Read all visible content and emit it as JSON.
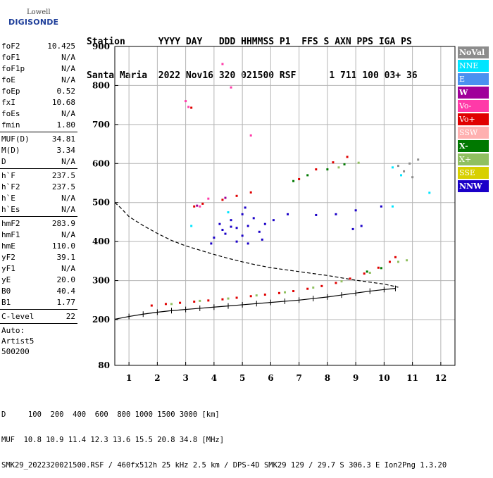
{
  "logo": {
    "line1": "Lowell",
    "line2": "DIGISONDE"
  },
  "header": {
    "line1": "Station      YYYY DAY   DDD HHMMSS P1  FFS S AXN PPS IGA PS",
    "line2": "Santa Maria  2022 Nov16 320 021500 RSF      1 711 100 03+ 36"
  },
  "params": [
    {
      "type": "row",
      "label": "foF2",
      "value": "10.425"
    },
    {
      "type": "row",
      "label": "foF1",
      "value": "N/A"
    },
    {
      "type": "row",
      "label": "foF1p",
      "value": "N/A"
    },
    {
      "type": "row",
      "label": "foE",
      "value": "N/A"
    },
    {
      "type": "row",
      "label": "foEp",
      "value": "0.52"
    },
    {
      "type": "row",
      "label": "fxI",
      "value": "10.68"
    },
    {
      "type": "row",
      "label": "foEs",
      "value": "N/A"
    },
    {
      "type": "row",
      "label": "fmin",
      "value": "1.80"
    },
    {
      "type": "sep"
    },
    {
      "type": "row",
      "label": "MUF(D)",
      "value": "34.81"
    },
    {
      "type": "row",
      "label": "M(D)",
      "value": "3.34"
    },
    {
      "type": "row",
      "label": "D",
      "value": "N/A"
    },
    {
      "type": "sep"
    },
    {
      "type": "row",
      "label": "h`F",
      "value": "237.5"
    },
    {
      "type": "row",
      "label": "h`F2",
      "value": "237.5"
    },
    {
      "type": "row",
      "label": "h`E",
      "value": "N/A"
    },
    {
      "type": "row",
      "label": "h`Es",
      "value": "N/A"
    },
    {
      "type": "sep"
    },
    {
      "type": "row",
      "label": "hmF2",
      "value": "283.9"
    },
    {
      "type": "row",
      "label": "hmF1",
      "value": "N/A"
    },
    {
      "type": "row",
      "label": "hmE",
      "value": "110.0"
    },
    {
      "type": "row",
      "label": "yF2",
      "value": "39.1"
    },
    {
      "type": "row",
      "label": "yF1",
      "value": "N/A"
    },
    {
      "type": "row",
      "label": "yE",
      "value": "20.0"
    },
    {
      "type": "row",
      "label": "B0",
      "value": "40.4"
    },
    {
      "type": "row",
      "label": "B1",
      "value": "1.77"
    },
    {
      "type": "sep"
    },
    {
      "type": "row",
      "label": "C-level",
      "value": "22"
    },
    {
      "type": "sep"
    },
    {
      "type": "text",
      "label": "Auto:"
    },
    {
      "type": "text",
      "label": "Artist5"
    },
    {
      "type": "text",
      "label": "500200"
    }
  ],
  "legend": [
    {
      "label": "NoVal",
      "bg": "#8c8c8c",
      "fg": "#ffffff",
      "bold": true
    },
    {
      "label": "NNE",
      "bg": "#00e5ff",
      "fg": "#ffffff",
      "bold": false
    },
    {
      "label": "E",
      "bg": "#4a90f0",
      "fg": "#ffffff",
      "bold": false
    },
    {
      "label": "W",
      "bg": "#a0009a",
      "fg": "#ffffff",
      "bold": true
    },
    {
      "label": "Vo-",
      "bg": "#ff3aa8",
      "fg": "#ffffff",
      "bold": false
    },
    {
      "label": "Vo+",
      "bg": "#e00000",
      "fg": "#ffffff",
      "bold": false
    },
    {
      "label": "SSW",
      "bg": "#ffb0b0",
      "fg": "#ffffff",
      "bold": false
    },
    {
      "label": "X-",
      "bg": "#007800",
      "fg": "#ffffff",
      "bold": true
    },
    {
      "label": "X+",
      "bg": "#90c060",
      "fg": "#ffffff",
      "bold": false
    },
    {
      "label": "SSE",
      "bg": "#d8d000",
      "fg": "#ffffff",
      "bold": false
    },
    {
      "label": "NNW",
      "bg": "#1a00c8",
      "fg": "#ffffff",
      "bold": true
    }
  ],
  "chart_data": {
    "type": "scatter",
    "xlim": [
      0.5,
      12.5
    ],
    "ylim": [
      80,
      900
    ],
    "xticks": [
      "1",
      "2",
      "3",
      "4",
      "5",
      "6",
      "7",
      "8",
      "9",
      "10",
      "11",
      "12"
    ],
    "yticks": [
      "80",
      "200",
      "300",
      "400",
      "500",
      "600",
      "700",
      "800",
      "900"
    ],
    "grid": true,
    "series": [
      {
        "color": "#e00000",
        "points": [
          [
            1.8,
            236
          ],
          [
            2.3,
            240
          ],
          [
            2.8,
            243
          ],
          [
            3.3,
            246
          ],
          [
            3.8,
            249
          ],
          [
            4.3,
            252
          ],
          [
            4.8,
            256
          ],
          [
            5.3,
            260
          ],
          [
            5.8,
            264
          ],
          [
            6.3,
            268
          ],
          [
            6.8,
            273
          ],
          [
            7.3,
            279
          ],
          [
            7.8,
            286
          ],
          [
            8.3,
            294
          ],
          [
            8.8,
            305
          ],
          [
            9.3,
            318
          ],
          [
            9.8,
            333
          ],
          [
            10.2,
            348
          ],
          [
            10.4,
            360
          ]
        ]
      },
      {
        "color": "#1a00c8",
        "points": [
          [
            4.0,
            410
          ],
          [
            4.4,
            420
          ],
          [
            4.8,
            435
          ],
          [
            5.2,
            440
          ],
          [
            5.6,
            425
          ],
          [
            4.2,
            445
          ],
          [
            4.6,
            455
          ],
          [
            5.0,
            470
          ],
          [
            5.4,
            460
          ],
          [
            4.8,
            400
          ],
          [
            5.2,
            395
          ],
          [
            5.0,
            415
          ],
          [
            4.6,
            438
          ],
          [
            5.8,
            445
          ],
          [
            6.1,
            455
          ],
          [
            6.6,
            470
          ],
          [
            7.6,
            468
          ],
          [
            8.3,
            470
          ],
          [
            9.0,
            480
          ],
          [
            9.2,
            440
          ],
          [
            8.9,
            432
          ],
          [
            9.9,
            490
          ],
          [
            3.9,
            395
          ],
          [
            4.3,
            430
          ],
          [
            5.7,
            405
          ],
          [
            5.1,
            487
          ]
        ]
      },
      {
        "color": "#e00000",
        "points": [
          [
            7.0,
            560
          ],
          [
            7.6,
            585
          ],
          [
            8.2,
            603
          ],
          [
            8.7,
            617
          ],
          [
            3.3,
            490
          ],
          [
            3.6,
            497
          ],
          [
            4.3,
            507
          ],
          [
            4.8,
            517
          ],
          [
            5.3,
            526
          ],
          [
            3.2,
            743
          ]
        ]
      },
      {
        "color": "#00e5ff",
        "points": [
          [
            10.3,
            590
          ],
          [
            10.6,
            570
          ],
          [
            11.6,
            525
          ],
          [
            10.3,
            490
          ],
          [
            4.5,
            475
          ],
          [
            3.2,
            440
          ]
        ]
      },
      {
        "color": "#90c060",
        "points": [
          [
            2.5,
            240
          ],
          [
            3.5,
            248
          ],
          [
            4.5,
            254
          ],
          [
            5.5,
            262
          ],
          [
            6.5,
            270
          ],
          [
            7.5,
            282
          ],
          [
            8.5,
            298
          ],
          [
            9.5,
            320
          ],
          [
            10.5,
            348
          ],
          [
            10.8,
            352
          ],
          [
            8.4,
            590
          ],
          [
            9.1,
            602
          ]
        ]
      },
      {
        "color": "#007800",
        "points": [
          [
            6.8,
            555
          ],
          [
            7.3,
            570
          ],
          [
            8.0,
            585
          ],
          [
            8.6,
            598
          ],
          [
            9.4,
            323
          ],
          [
            9.9,
            332
          ]
        ]
      },
      {
        "color": "#8c8c8c",
        "points": [
          [
            10.5,
            594
          ],
          [
            10.9,
            600
          ],
          [
            11.2,
            610
          ],
          [
            10.7,
            580
          ],
          [
            11.0,
            565
          ]
        ]
      },
      {
        "color": "#ff3aa8",
        "points": [
          [
            3.1,
            745
          ],
          [
            4.6,
            795
          ],
          [
            5.3,
            672
          ],
          [
            4.3,
            855
          ],
          [
            3.0,
            760
          ],
          [
            3.5,
            490
          ],
          [
            3.8,
            510
          ]
        ]
      },
      {
        "color": "#a0009a",
        "points": [
          [
            3.4,
            492
          ],
          [
            4.4,
            512
          ]
        ]
      }
    ],
    "curves": [
      {
        "style": "dashed",
        "points": [
          [
            0.5,
            500
          ],
          [
            0.7,
            487
          ],
          [
            1.0,
            464
          ],
          [
            1.5,
            441
          ],
          [
            2.0,
            421
          ],
          [
            2.5,
            403
          ],
          [
            3.0,
            389
          ],
          [
            3.5,
            378
          ],
          [
            4.0,
            367
          ],
          [
            4.5,
            357
          ],
          [
            5.0,
            348
          ],
          [
            5.5,
            340
          ],
          [
            6.0,
            333
          ],
          [
            6.5,
            328
          ],
          [
            7.0,
            323
          ],
          [
            7.5,
            318
          ],
          [
            8.0,
            313
          ],
          [
            8.5,
            307
          ],
          [
            9.0,
            301
          ],
          [
            9.5,
            296
          ],
          [
            10.0,
            291
          ],
          [
            10.5,
            283
          ]
        ]
      },
      {
        "style": "solid-ticks",
        "points": [
          [
            0.5,
            201
          ],
          [
            1.0,
            208
          ],
          [
            1.5,
            214
          ],
          [
            2.0,
            219
          ],
          [
            2.5,
            223
          ],
          [
            3.0,
            226
          ],
          [
            3.5,
            229
          ],
          [
            4.0,
            232
          ],
          [
            4.5,
            235
          ],
          [
            5.0,
            238
          ],
          [
            5.5,
            241
          ],
          [
            6.0,
            244
          ],
          [
            6.5,
            247
          ],
          [
            7.0,
            250
          ],
          [
            7.5,
            254
          ],
          [
            8.0,
            258
          ],
          [
            8.5,
            263
          ],
          [
            9.0,
            268
          ],
          [
            9.5,
            273
          ],
          [
            10.0,
            277
          ],
          [
            10.4,
            280
          ]
        ]
      }
    ]
  },
  "footer": {
    "line1": "D     100  200  400  600  800 1000 1500 3000 [km]",
    "line2": "MUF  10.8 10.9 11.4 12.3 13.6 15.5 20.8 34.8 [MHz]",
    "line3": "SMK29_2022320021500.RSF / 460fx512h 25 kHz 2.5 km / DPS-4D SMK29 129 / 29.7 S 306.3 E Ion2Png 1.3.20"
  }
}
